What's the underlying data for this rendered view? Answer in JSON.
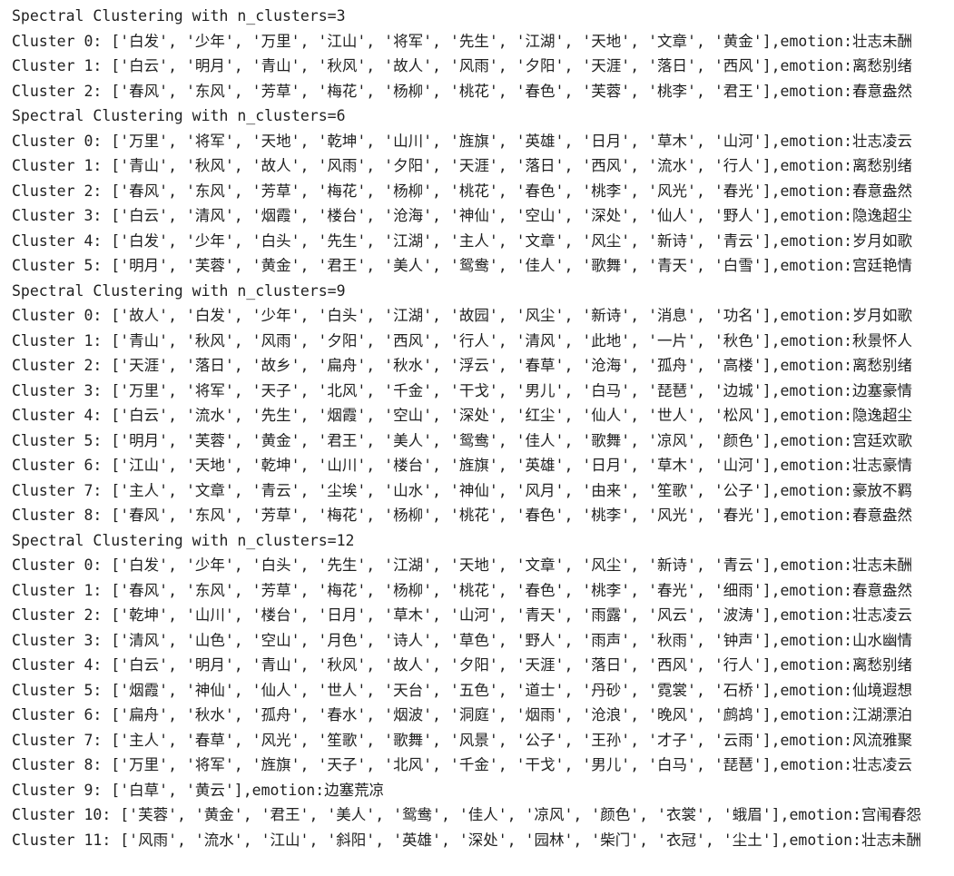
{
  "sections": [
    {
      "header": "Spectral Clustering with n_clusters=3",
      "clusters": [
        "Cluster 0: ['白发', '少年', '万里', '江山', '将军', '先生', '江湖', '天地', '文章', '黄金'],emotion:壮志未酬",
        "Cluster 1: ['白云', '明月', '青山', '秋风', '故人', '风雨', '夕阳', '天涯', '落日', '西风'],emotion:离愁别绪",
        "Cluster 2: ['春风', '东风', '芳草', '梅花', '杨柳', '桃花', '春色', '芙蓉', '桃李', '君王'],emotion:春意盎然"
      ]
    },
    {
      "header": "Spectral Clustering with n_clusters=6",
      "clusters": [
        "Cluster 0: ['万里', '将军', '天地', '乾坤', '山川', '旌旗', '英雄', '日月', '草木', '山河'],emotion:壮志凌云",
        "Cluster 1: ['青山', '秋风', '故人', '风雨', '夕阳', '天涯', '落日', '西风', '流水', '行人'],emotion:离愁别绪",
        "Cluster 2: ['春风', '东风', '芳草', '梅花', '杨柳', '桃花', '春色', '桃李', '风光', '春光'],emotion:春意盎然",
        "Cluster 3: ['白云', '清风', '烟霞', '楼台', '沧海', '神仙', '空山', '深处', '仙人', '野人'],emotion:隐逸超尘",
        "Cluster 4: ['白发', '少年', '白头', '先生', '江湖', '主人', '文章', '风尘', '新诗', '青云'],emotion:岁月如歌",
        "Cluster 5: ['明月', '芙蓉', '黄金', '君王', '美人', '鸳鸯', '佳人', '歌舞', '青天', '白雪'],emotion:宫廷艳情"
      ]
    },
    {
      "header": "Spectral Clustering with n_clusters=9",
      "clusters": [
        "Cluster 0: ['故人', '白发', '少年', '白头', '江湖', '故园', '风尘', '新诗', '消息', '功名'],emotion:岁月如歌",
        "Cluster 1: ['青山', '秋风', '风雨', '夕阳', '西风', '行人', '清风', '此地', '一片', '秋色'],emotion:秋景怀人",
        "Cluster 2: ['天涯', '落日', '故乡', '扁舟', '秋水', '浮云', '春草', '沧海', '孤舟', '高楼'],emotion:离愁别绪",
        "Cluster 3: ['万里', '将军', '天子', '北风', '千金', '干戈', '男儿', '白马', '琵琶', '边城'],emotion:边塞豪情",
        "Cluster 4: ['白云', '流水', '先生', '烟霞', '空山', '深处', '红尘', '仙人', '世人', '松风'],emotion:隐逸超尘",
        "Cluster 5: ['明月', '芙蓉', '黄金', '君王', '美人', '鸳鸯', '佳人', '歌舞', '凉风', '颜色'],emotion:宫廷欢歌",
        "Cluster 6: ['江山', '天地', '乾坤', '山川', '楼台', '旌旗', '英雄', '日月', '草木', '山河'],emotion:壮志豪情",
        "Cluster 7: ['主人', '文章', '青云', '尘埃', '山水', '神仙', '风月', '由来', '笙歌', '公子'],emotion:豪放不羁",
        "Cluster 8: ['春风', '东风', '芳草', '梅花', '杨柳', '桃花', '春色', '桃李', '风光', '春光'],emotion:春意盎然"
      ]
    },
    {
      "header": "Spectral Clustering with n_clusters=12",
      "clusters": [
        "Cluster 0: ['白发', '少年', '白头', '先生', '江湖', '天地', '文章', '风尘', '新诗', '青云'],emotion:壮志未酬",
        "Cluster 1: ['春风', '东风', '芳草', '梅花', '杨柳', '桃花', '春色', '桃李', '春光', '细雨'],emotion:春意盎然",
        "Cluster 2: ['乾坤', '山川', '楼台', '日月', '草木', '山河', '青天', '雨露', '风云', '波涛'],emotion:壮志凌云",
        "Cluster 3: ['清风', '山色', '空山', '月色', '诗人', '草色', '野人', '雨声', '秋雨', '钟声'],emotion:山水幽情",
        "Cluster 4: ['白云', '明月', '青山', '秋风', '故人', '夕阳', '天涯', '落日', '西风', '行人'],emotion:离愁别绪",
        "Cluster 5: ['烟霞', '神仙', '仙人', '世人', '天台', '五色', '道士', '丹砂', '霓裳', '石桥'],emotion:仙境遐想",
        "Cluster 6: ['扁舟', '秋水', '孤舟', '春水', '烟波', '洞庭', '烟雨', '沧浪', '晚风', '鹧鸪'],emotion:江湖漂泊",
        "Cluster 7: ['主人', '春草', '风光', '笙歌', '歌舞', '风景', '公子', '王孙', '才子', '云雨'],emotion:风流雅聚",
        "Cluster 8: ['万里', '将军', '旌旗', '天子', '北风', '千金', '干戈', '男儿', '白马', '琵琶'],emotion:壮志凌云",
        "Cluster 9: ['白草', '黄云'],emotion:边塞荒凉",
        "Cluster 10: ['芙蓉', '黄金', '君王', '美人', '鸳鸯', '佳人', '凉风', '颜色', '衣裳', '蛾眉'],emotion:宫闱春怨",
        "Cluster 11: ['风雨', '流水', '江山', '斜阳', '英雄', '深处', '园林', '柴门', '衣冠', '尘土'],emotion:壮志未酬"
      ]
    }
  ]
}
